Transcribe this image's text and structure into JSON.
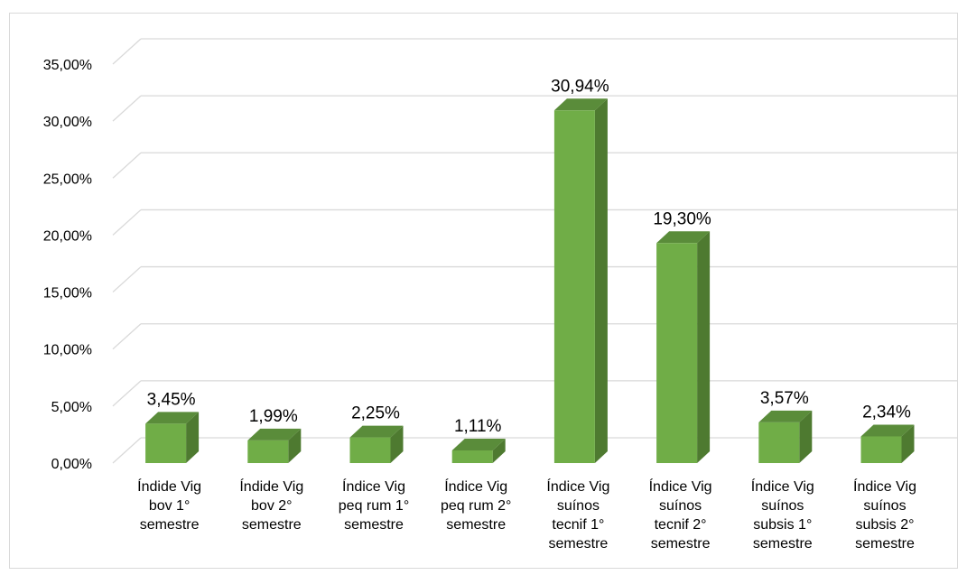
{
  "chart_data": {
    "type": "bar",
    "bar_style": "3d-column",
    "categories": [
      [
        "Índide Vig",
        "bov 1°",
        "semestre"
      ],
      [
        "Índide Vig",
        "bov 2°",
        "semestre"
      ],
      [
        "Índice Vig",
        "peq rum 1°",
        "semestre"
      ],
      [
        "Índice Vig",
        "peq rum 2°",
        "semestre"
      ],
      [
        "Índice Vig",
        "suínos",
        "tecnif 1°",
        "semestre"
      ],
      [
        "Índice Vig",
        "suínos",
        "tecnif 2°",
        "semestre"
      ],
      [
        "Índice Vig",
        "suínos",
        "subsis 1°",
        "semestre"
      ],
      [
        "Índice Vig",
        "suínos",
        "subsis 2°",
        "semestre"
      ]
    ],
    "values": [
      3.45,
      1.99,
      2.25,
      1.11,
      30.94,
      19.3,
      3.57,
      2.34
    ],
    "data_labels": [
      "3,45%",
      "1,99%",
      "2,25%",
      "1,11%",
      "30,94%",
      "19,30%",
      "3,57%",
      "2,34%"
    ],
    "y_ticks": [
      "0,00%",
      "5,00%",
      "10,00%",
      "15,00%",
      "20,00%",
      "25,00%",
      "30,00%",
      "35,00%"
    ],
    "ylim": [
      0,
      35
    ],
    "grid": true,
    "colors": {
      "front": "#70ad47",
      "side": "#4e7a30",
      "top": "#5a8c3a",
      "grid": "#d9d9d9"
    }
  }
}
